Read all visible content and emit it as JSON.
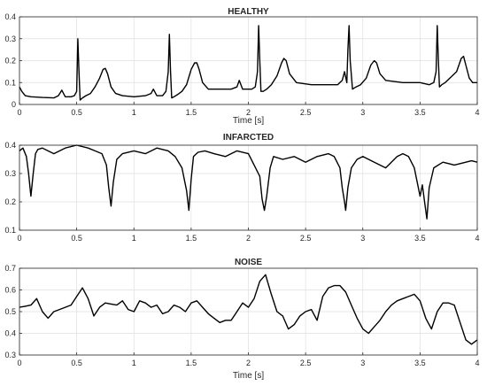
{
  "chart_data": [
    {
      "type": "line",
      "title": "HEALTHY",
      "xlabel": "Time [s]",
      "ylabel": "",
      "xlim": [
        0,
        4
      ],
      "ylim": [
        0,
        0.4
      ],
      "xticks": [
        "0",
        "0.5",
        "1",
        "1.5",
        "2",
        "2.5",
        "3",
        "3.5",
        "4"
      ],
      "yticks": [
        "0",
        "0.1",
        "0.2",
        "0.3",
        "0.4"
      ],
      "grid": true,
      "line_color": "#000000",
      "series": [
        {
          "x": [
            0,
            0.02,
            0.05,
            0.1,
            0.2,
            0.3,
            0.34,
            0.37,
            0.4,
            0.45,
            0.48,
            0.5,
            0.51,
            0.52,
            0.53,
            0.55,
            0.58,
            0.62,
            0.66,
            0.7,
            0.73,
            0.75,
            0.77,
            0.8,
            0.84,
            0.9,
            1.0,
            1.1,
            1.15,
            1.17,
            1.2,
            1.25,
            1.28,
            1.3,
            1.31,
            1.32,
            1.33,
            1.35,
            1.38,
            1.42,
            1.46,
            1.5,
            1.53,
            1.55,
            1.57,
            1.6,
            1.65,
            1.75,
            1.85,
            1.9,
            1.92,
            1.95,
            2.0,
            2.03,
            2.06,
            2.08,
            2.09,
            2.1,
            2.11,
            2.13,
            2.16,
            2.2,
            2.25,
            2.29,
            2.31,
            2.33,
            2.36,
            2.42,
            2.55,
            2.7,
            2.78,
            2.82,
            2.84,
            2.86,
            2.87,
            2.88,
            2.89,
            2.91,
            2.94,
            2.98,
            3.03,
            3.07,
            3.1,
            3.12,
            3.15,
            3.2,
            3.35,
            3.5,
            3.58,
            3.62,
            3.64,
            3.65,
            3.66,
            3.67,
            3.69,
            3.72,
            3.76,
            3.82,
            3.86,
            3.88,
            3.9,
            3.93,
            3.96,
            4.0
          ],
          "y": [
            0.08,
            0.06,
            0.04,
            0.035,
            0.032,
            0.03,
            0.04,
            0.065,
            0.035,
            0.035,
            0.04,
            0.06,
            0.3,
            0.15,
            0.02,
            0.03,
            0.04,
            0.05,
            0.08,
            0.12,
            0.16,
            0.165,
            0.14,
            0.08,
            0.05,
            0.04,
            0.035,
            0.04,
            0.05,
            0.07,
            0.04,
            0.04,
            0.06,
            0.15,
            0.32,
            0.15,
            0.03,
            0.035,
            0.045,
            0.06,
            0.09,
            0.16,
            0.19,
            0.19,
            0.16,
            0.1,
            0.07,
            0.07,
            0.07,
            0.08,
            0.11,
            0.07,
            0.07,
            0.07,
            0.08,
            0.15,
            0.36,
            0.2,
            0.06,
            0.06,
            0.07,
            0.09,
            0.13,
            0.19,
            0.21,
            0.2,
            0.14,
            0.1,
            0.09,
            0.09,
            0.09,
            0.11,
            0.15,
            0.1,
            0.25,
            0.36,
            0.2,
            0.07,
            0.08,
            0.09,
            0.12,
            0.18,
            0.2,
            0.19,
            0.14,
            0.11,
            0.1,
            0.1,
            0.09,
            0.1,
            0.15,
            0.36,
            0.2,
            0.08,
            0.09,
            0.1,
            0.12,
            0.15,
            0.21,
            0.22,
            0.18,
            0.12,
            0.1,
            0.1
          ]
        }
      ]
    },
    {
      "type": "line",
      "title": "INFARCTED",
      "xlabel": "",
      "ylabel": "",
      "xlim": [
        0,
        4
      ],
      "ylim": [
        0.1,
        0.4
      ],
      "xticks": [
        "0",
        "0.5",
        "1",
        "1.5",
        "2",
        "2.5",
        "3",
        "3.5",
        "4"
      ],
      "yticks": [
        "0.1",
        "0.2",
        "0.3",
        "0.4"
      ],
      "grid": true,
      "line_color": "#000000",
      "series": [
        {
          "x": [
            0,
            0.03,
            0.06,
            0.08,
            0.1,
            0.12,
            0.14,
            0.16,
            0.2,
            0.3,
            0.4,
            0.5,
            0.6,
            0.66,
            0.72,
            0.76,
            0.78,
            0.8,
            0.82,
            0.85,
            0.9,
            1.0,
            1.1,
            1.2,
            1.3,
            1.36,
            1.42,
            1.46,
            1.48,
            1.5,
            1.52,
            1.56,
            1.62,
            1.7,
            1.8,
            1.9,
            2.0,
            2.05,
            2.1,
            2.12,
            2.14,
            2.16,
            2.19,
            2.22,
            2.3,
            2.4,
            2.5,
            2.6,
            2.7,
            2.75,
            2.8,
            2.82,
            2.84,
            2.85,
            2.87,
            2.9,
            2.95,
            3.0,
            3.1,
            3.2,
            3.3,
            3.35,
            3.4,
            3.45,
            3.48,
            3.5,
            3.52,
            3.54,
            3.56,
            3.58,
            3.62,
            3.7,
            3.8,
            3.9,
            3.95,
            4.0
          ],
          "y": [
            0.38,
            0.39,
            0.36,
            0.3,
            0.22,
            0.3,
            0.37,
            0.385,
            0.39,
            0.37,
            0.39,
            0.4,
            0.39,
            0.38,
            0.37,
            0.33,
            0.25,
            0.185,
            0.27,
            0.35,
            0.37,
            0.38,
            0.37,
            0.39,
            0.38,
            0.36,
            0.32,
            0.24,
            0.17,
            0.28,
            0.36,
            0.375,
            0.38,
            0.37,
            0.36,
            0.38,
            0.37,
            0.33,
            0.29,
            0.21,
            0.17,
            0.22,
            0.32,
            0.36,
            0.35,
            0.36,
            0.34,
            0.36,
            0.37,
            0.36,
            0.32,
            0.25,
            0.2,
            0.17,
            0.25,
            0.32,
            0.35,
            0.36,
            0.34,
            0.32,
            0.36,
            0.37,
            0.36,
            0.32,
            0.26,
            0.22,
            0.26,
            0.2,
            0.14,
            0.25,
            0.32,
            0.34,
            0.33,
            0.34,
            0.345,
            0.34
          ]
        }
      ]
    },
    {
      "type": "line",
      "title": "NOISE",
      "xlabel": "Time [s]",
      "ylabel": "",
      "xlim": [
        0,
        4
      ],
      "ylim": [
        0.3,
        0.7
      ],
      "xticks": [
        "0",
        "0.5",
        "1",
        "1.5",
        "2",
        "2.5",
        "3",
        "3.5",
        "4"
      ],
      "yticks": [
        "0.3",
        "0.4",
        "0.5",
        "0.6",
        "0.7"
      ],
      "grid": true,
      "line_color": "#000000",
      "series": [
        {
          "x": [
            0,
            0.05,
            0.1,
            0.15,
            0.2,
            0.25,
            0.3,
            0.35,
            0.4,
            0.45,
            0.5,
            0.55,
            0.6,
            0.65,
            0.7,
            0.75,
            0.8,
            0.85,
            0.9,
            0.95,
            1.0,
            1.05,
            1.1,
            1.15,
            1.2,
            1.25,
            1.3,
            1.35,
            1.4,
            1.45,
            1.5,
            1.55,
            1.6,
            1.65,
            1.7,
            1.75,
            1.8,
            1.85,
            1.9,
            1.95,
            2.0,
            2.05,
            2.1,
            2.15,
            2.2,
            2.25,
            2.3,
            2.35,
            2.4,
            2.45,
            2.5,
            2.55,
            2.6,
            2.65,
            2.7,
            2.75,
            2.8,
            2.85,
            2.9,
            2.95,
            3.0,
            3.05,
            3.1,
            3.15,
            3.2,
            3.25,
            3.3,
            3.35,
            3.4,
            3.45,
            3.5,
            3.55,
            3.6,
            3.65,
            3.7,
            3.75,
            3.8,
            3.85,
            3.9,
            3.95,
            4.0
          ],
          "y": [
            0.52,
            0.525,
            0.53,
            0.56,
            0.5,
            0.47,
            0.5,
            0.51,
            0.52,
            0.53,
            0.57,
            0.61,
            0.56,
            0.48,
            0.52,
            0.54,
            0.535,
            0.53,
            0.55,
            0.51,
            0.5,
            0.55,
            0.54,
            0.52,
            0.53,
            0.49,
            0.5,
            0.53,
            0.52,
            0.5,
            0.54,
            0.55,
            0.52,
            0.49,
            0.47,
            0.45,
            0.46,
            0.46,
            0.5,
            0.54,
            0.52,
            0.56,
            0.64,
            0.67,
            0.58,
            0.5,
            0.48,
            0.42,
            0.44,
            0.48,
            0.5,
            0.51,
            0.46,
            0.57,
            0.61,
            0.62,
            0.62,
            0.59,
            0.53,
            0.47,
            0.42,
            0.4,
            0.43,
            0.46,
            0.5,
            0.53,
            0.55,
            0.56,
            0.57,
            0.58,
            0.55,
            0.47,
            0.42,
            0.5,
            0.54,
            0.54,
            0.53,
            0.45,
            0.37,
            0.35,
            0.37
          ]
        }
      ]
    }
  ]
}
